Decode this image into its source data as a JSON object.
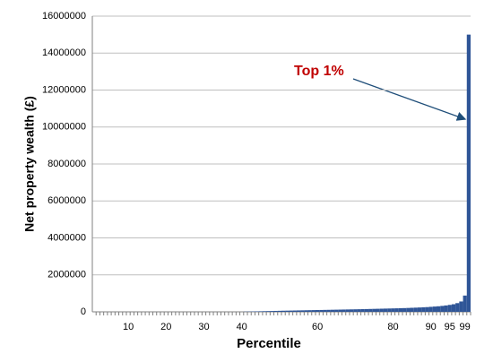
{
  "chart_data": {
    "type": "bar",
    "x_label": "Percentile",
    "y_label": "Net property wealth (£)",
    "annotation": "Top 1%",
    "categories": [
      null,
      null,
      null,
      null,
      null,
      null,
      null,
      null,
      null,
      "10",
      null,
      null,
      null,
      null,
      null,
      null,
      null,
      null,
      null,
      "20",
      null,
      null,
      null,
      null,
      null,
      null,
      null,
      null,
      null,
      "30",
      null,
      null,
      null,
      null,
      null,
      null,
      null,
      null,
      null,
      "40",
      null,
      null,
      null,
      null,
      null,
      null,
      null,
      null,
      null,
      null,
      null,
      null,
      null,
      null,
      null,
      null,
      null,
      null,
      null,
      "60",
      null,
      null,
      null,
      null,
      null,
      null,
      null,
      null,
      null,
      null,
      null,
      null,
      null,
      null,
      null,
      null,
      null,
      null,
      null,
      "80",
      null,
      null,
      null,
      null,
      null,
      null,
      null,
      null,
      null,
      "90",
      null,
      null,
      null,
      null,
      "95",
      null,
      null,
      null,
      "99",
      null
    ],
    "values": [
      0,
      0,
      0,
      0,
      0,
      0,
      0,
      0,
      0,
      0,
      0,
      0,
      0,
      0,
      0,
      0,
      0,
      0,
      0,
      0,
      0,
      0,
      0,
      0,
      0,
      0,
      0,
      0,
      0,
      0,
      0,
      0,
      0,
      0,
      0,
      0,
      0,
      0,
      0,
      0,
      10000,
      15000,
      20000,
      25000,
      30000,
      35000,
      40000,
      45000,
      50000,
      55000,
      60000,
      64000,
      68000,
      72000,
      76000,
      80000,
      84000,
      88000,
      92000,
      96000,
      100000,
      104000,
      108000,
      112000,
      116000,
      120000,
      124000,
      128000,
      132000,
      136000,
      140000,
      145000,
      150000,
      155000,
      160000,
      165000,
      170000,
      175000,
      180000,
      185000,
      190000,
      196000,
      202000,
      210000,
      218000,
      226000,
      235000,
      245000,
      255000,
      270000,
      285000,
      300000,
      320000,
      345000,
      375000,
      410000,
      470000,
      560000,
      880000,
      15000000
    ],
    "color": "#2f5597",
    "ylim": [
      0,
      16000000
    ],
    "yticks": [
      0,
      2000000,
      4000000,
      6000000,
      8000000,
      10000000,
      12000000,
      14000000,
      16000000
    ],
    "grid": true
  }
}
